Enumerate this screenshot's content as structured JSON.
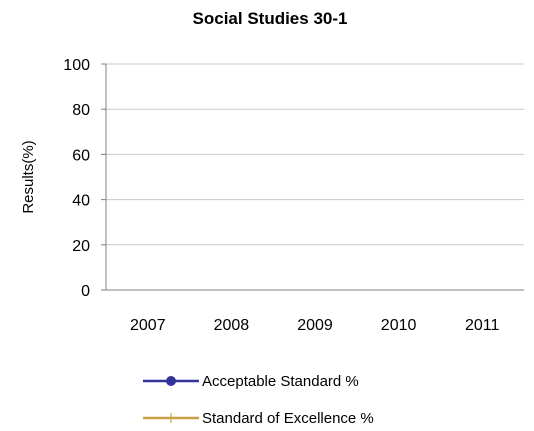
{
  "chart_data": {
    "type": "line",
    "title": "Social Studies 30-1",
    "xlabel": "",
    "ylabel": "Results(%)",
    "categories": [
      "2007",
      "2008",
      "2009",
      "2010",
      "2011"
    ],
    "ylim": [
      0,
      100
    ],
    "yticks": [
      "0",
      "20",
      "40",
      "60",
      "80",
      "100"
    ],
    "grid": true,
    "legend_position": "bottom",
    "series": [
      {
        "name": "Acceptable Standard %",
        "values": [
          null,
          null,
          null,
          null,
          null
        ],
        "color": "#333399",
        "marker": "circle"
      },
      {
        "name": "Standard of Excellence %",
        "values": [
          null,
          null,
          null,
          null,
          null
        ],
        "color": "#C9A048",
        "marker": "plus"
      }
    ]
  }
}
